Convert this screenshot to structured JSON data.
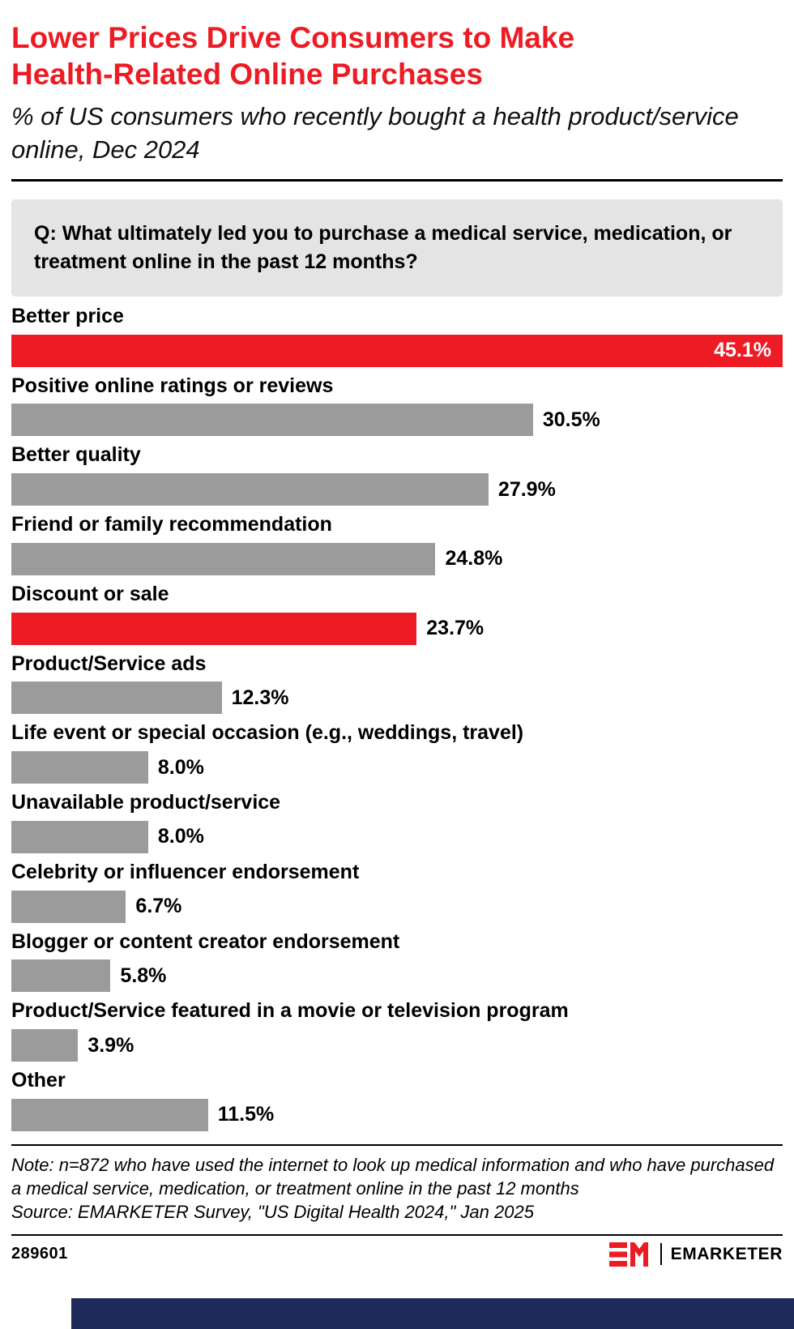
{
  "header": {
    "title_line1": "Lower Prices Drive Consumers to Make",
    "title_line2": "Health-Related Online Purchases",
    "subtitle": "% of US consumers who recently bought a health product/service online, Dec 2024"
  },
  "question": "Q: What ultimately led you to purchase a medical service, medication, or treatment online in the past 12 months?",
  "chart_data": {
    "type": "bar",
    "orientation": "horizontal",
    "title": "Lower Prices Drive Consumers to Make Health-Related Online Purchases",
    "subtitle": "% of US consumers who recently bought a health product/service online, Dec 2024",
    "categories": [
      "Better price",
      "Positive online ratings or reviews",
      "Better quality",
      "Friend or family recommendation",
      "Discount or sale",
      "Product/Service ads",
      "Life event or special occasion (e.g., weddings, travel)",
      "Unavailable product/service",
      "Celebrity or influencer endorsement",
      "Blogger or content creator endorsement",
      "Product/Service featured in a movie or television program",
      "Other"
    ],
    "values": [
      45.1,
      30.5,
      27.9,
      24.8,
      23.7,
      12.3,
      8.0,
      8.0,
      6.7,
      5.8,
      3.9,
      11.5
    ],
    "value_labels": [
      "45.1%",
      "30.5%",
      "27.9%",
      "24.8%",
      "23.7%",
      "12.3%",
      "8.0%",
      "8.0%",
      "6.7%",
      "5.8%",
      "3.9%",
      "11.5%"
    ],
    "bar_colors": [
      "#ED1C24",
      "#9B9B9B",
      "#9B9B9B",
      "#9B9B9B",
      "#ED1C24",
      "#9B9B9B",
      "#9B9B9B",
      "#9B9B9B",
      "#9B9B9B",
      "#9B9B9B",
      "#9B9B9B",
      "#9B9B9B"
    ],
    "value_inside": [
      true,
      false,
      false,
      false,
      false,
      false,
      false,
      false,
      false,
      false,
      false,
      false
    ],
    "xlim": [
      0,
      45.1
    ],
    "axis_max_scale": 45.1,
    "grid": false,
    "legend": "none"
  },
  "footer": {
    "note": "Note: n=872 who have used the internet to look up medical information and who have purchased a medical service, medication, or treatment online in the past 12 months",
    "source": "Source: EMARKETER Survey, \"US Digital Health 2024,\" Jan 2025",
    "chart_id": "289601",
    "brand_name": "EMARKETER",
    "logo_mark": "EM"
  },
  "colors": {
    "accent_red": "#ED1C24",
    "bar_gray": "#9B9B9B",
    "question_bg": "#E4E4E5",
    "footer_bar_navy": "#1E2A5A"
  }
}
